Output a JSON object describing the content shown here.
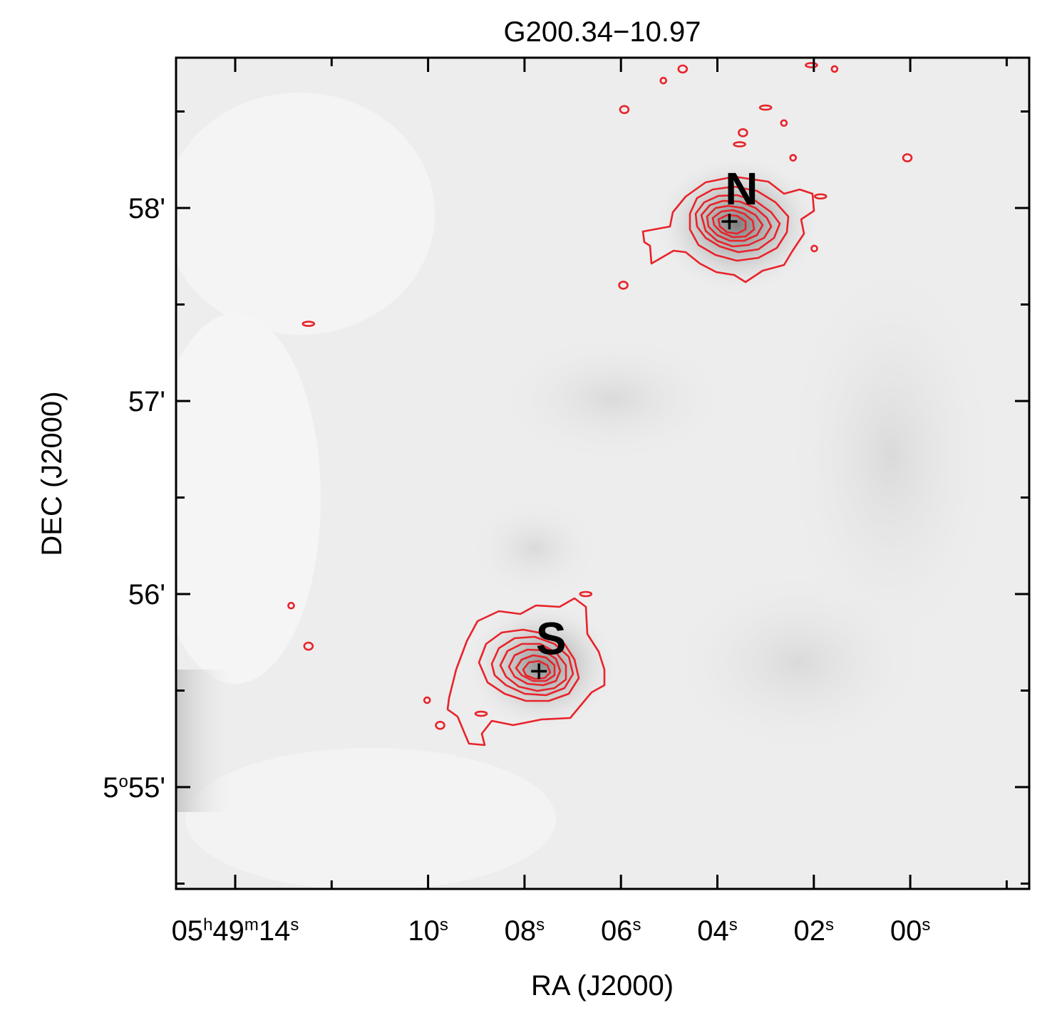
{
  "chart_data": {
    "type": "contour",
    "title": "G200.34−10.97",
    "xlabel": "RA (J2000)",
    "ylabel": "DEC (J2000)",
    "x_axis": {
      "unit": "seconds of RA (05h49m)",
      "range": [
        15.2,
        -2.0
      ],
      "major_ticks": [
        {
          "value": 14,
          "label_parts": [
            "05",
            "h",
            "49",
            "m",
            "14",
            "s"
          ]
        },
        {
          "value": 10,
          "label_parts": [
            "10",
            "s"
          ]
        },
        {
          "value": 8,
          "label_parts": [
            "08",
            "s"
          ]
        },
        {
          "value": 6,
          "label_parts": [
            "06",
            "s"
          ]
        },
        {
          "value": 4,
          "label_parts": [
            "04",
            "s"
          ]
        },
        {
          "value": 2,
          "label_parts": [
            "02",
            "s"
          ]
        },
        {
          "value": 0,
          "label_parts": [
            "00",
            "s"
          ]
        }
      ],
      "minor_ticks": [
        12,
        -2
      ]
    },
    "y_axis": {
      "unit": "arcmin of DEC (5°)",
      "range": [
        54.5,
        58.75
      ],
      "major_ticks": [
        {
          "value": 58,
          "label_parts": [
            "58'"
          ]
        },
        {
          "value": 57,
          "label_parts": [
            "57'"
          ]
        },
        {
          "value": 56,
          "label_parts": [
            "56'"
          ]
        },
        {
          "value": 55,
          "label_parts": [
            "5",
            "o",
            "55'"
          ]
        }
      ],
      "minor_ticks": [
        54.5,
        55.5,
        56.5,
        57.5,
        58.5
      ]
    },
    "background": {
      "type": "grayscale image",
      "description_colors": [
        "#e4e4e4",
        "#eeeeee",
        "#f6f6f6"
      ]
    },
    "contour_color": "#e8232a",
    "grid": false,
    "sources": [
      {
        "name": "N",
        "ra_s": 3.75,
        "dec_arcmin": 57.93,
        "contour_levels": 7
      },
      {
        "name": "S",
        "ra_s": 7.7,
        "dec_arcmin": 55.6,
        "contour_levels": 7
      }
    ],
    "noise_blobs": [
      {
        "ra_s": 5.12,
        "dec_arcmin": 58.66
      },
      {
        "ra_s": 4.72,
        "dec_arcmin": 58.72
      },
      {
        "ra_s": 2.05,
        "dec_arcmin": 58.74
      },
      {
        "ra_s": 1.57,
        "dec_arcmin": 58.72
      },
      {
        "ra_s": 5.93,
        "dec_arcmin": 58.51
      },
      {
        "ra_s": 3.0,
        "dec_arcmin": 58.52
      },
      {
        "ra_s": 2.62,
        "dec_arcmin": 58.44
      },
      {
        "ra_s": 3.47,
        "dec_arcmin": 58.39
      },
      {
        "ra_s": 3.54,
        "dec_arcmin": 58.33
      },
      {
        "ra_s": 2.43,
        "dec_arcmin": 58.26
      },
      {
        "ra_s": 0.06,
        "dec_arcmin": 58.26
      },
      {
        "ra_s": 1.86,
        "dec_arcmin": 58.06
      },
      {
        "ra_s": 1.99,
        "dec_arcmin": 57.79
      },
      {
        "ra_s": 5.95,
        "dec_arcmin": 57.6
      },
      {
        "ra_s": 12.48,
        "dec_arcmin": 57.4
      },
      {
        "ra_s": 12.84,
        "dec_arcmin": 55.94
      },
      {
        "ra_s": 12.48,
        "dec_arcmin": 55.73
      },
      {
        "ra_s": 6.73,
        "dec_arcmin": 56.0
      },
      {
        "ra_s": 10.02,
        "dec_arcmin": 55.45
      },
      {
        "ra_s": 9.75,
        "dec_arcmin": 55.32
      },
      {
        "ra_s": 8.9,
        "dec_arcmin": 55.38
      }
    ]
  }
}
